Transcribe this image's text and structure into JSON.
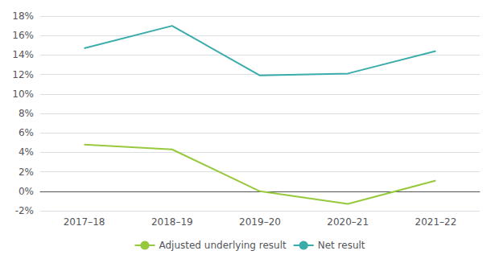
{
  "chart_data": {
    "type": "line",
    "categories": [
      "2017–18",
      "2018–19",
      "2019–20",
      "2020–21",
      "2021–22"
    ],
    "series": [
      {
        "name": "Adjusted underlying result",
        "color": "#97c93d",
        "values": [
          4.8,
          4.3,
          0.0,
          -1.3,
          1.1
        ]
      },
      {
        "name": "Net result",
        "color": "#3aacaa",
        "values": [
          14.7,
          17.0,
          11.9,
          12.1,
          14.4
        ]
      }
    ],
    "ylim": [
      -2,
      18
    ],
    "yticks": [
      {
        "value": -2,
        "label": "-2%"
      },
      {
        "value": 0,
        "label": "0%"
      },
      {
        "value": 2,
        "label": "2%"
      },
      {
        "value": 4,
        "label": "4%"
      },
      {
        "value": 6,
        "label": "6%"
      },
      {
        "value": 8,
        "label": "8%"
      },
      {
        "value": 10,
        "label": "10%"
      },
      {
        "value": 12,
        "label": "12%"
      },
      {
        "value": 14,
        "label": "14%"
      },
      {
        "value": 16,
        "label": "16%"
      },
      {
        "value": 18,
        "label": "18%"
      }
    ],
    "grid": true,
    "legend": "bottom"
  }
}
